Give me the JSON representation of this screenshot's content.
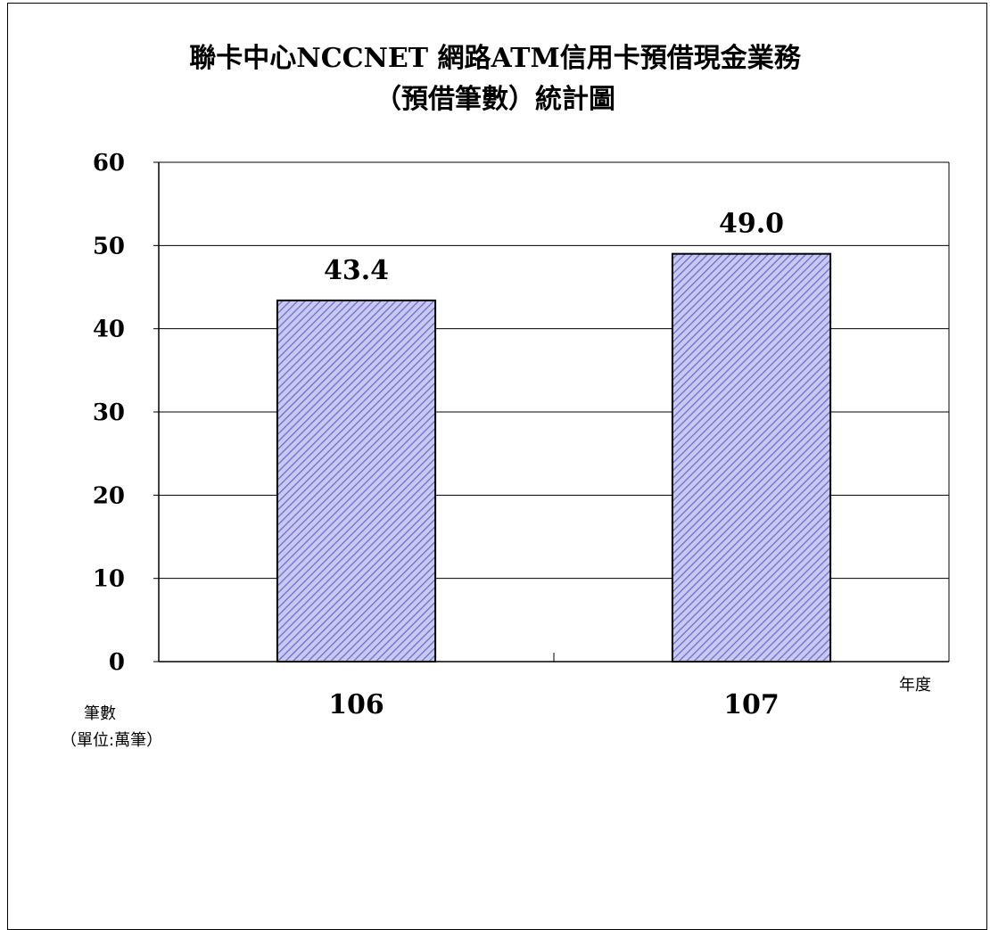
{
  "chart_data": {
    "type": "bar",
    "title": [
      "聯卡中心NCCNET 網路ATM信用卡預借現金業務",
      "（預借筆數）統計圖"
    ],
    "categories": [
      "106",
      "107"
    ],
    "values": [
      43.4,
      49.0
    ],
    "value_labels": [
      "43.4",
      "49.0"
    ],
    "ylabel": "筆數",
    "yunit": "（單位:萬筆）",
    "xlabel": "年度",
    "ylim": [
      0,
      60
    ],
    "yticks": [
      0,
      10,
      20,
      30,
      40,
      50,
      60
    ],
    "grid": true,
    "colors": {
      "bar_fill": "#c8c8f0",
      "bar_hatch": "#6a6acc",
      "bar_edge": "#000000"
    }
  }
}
